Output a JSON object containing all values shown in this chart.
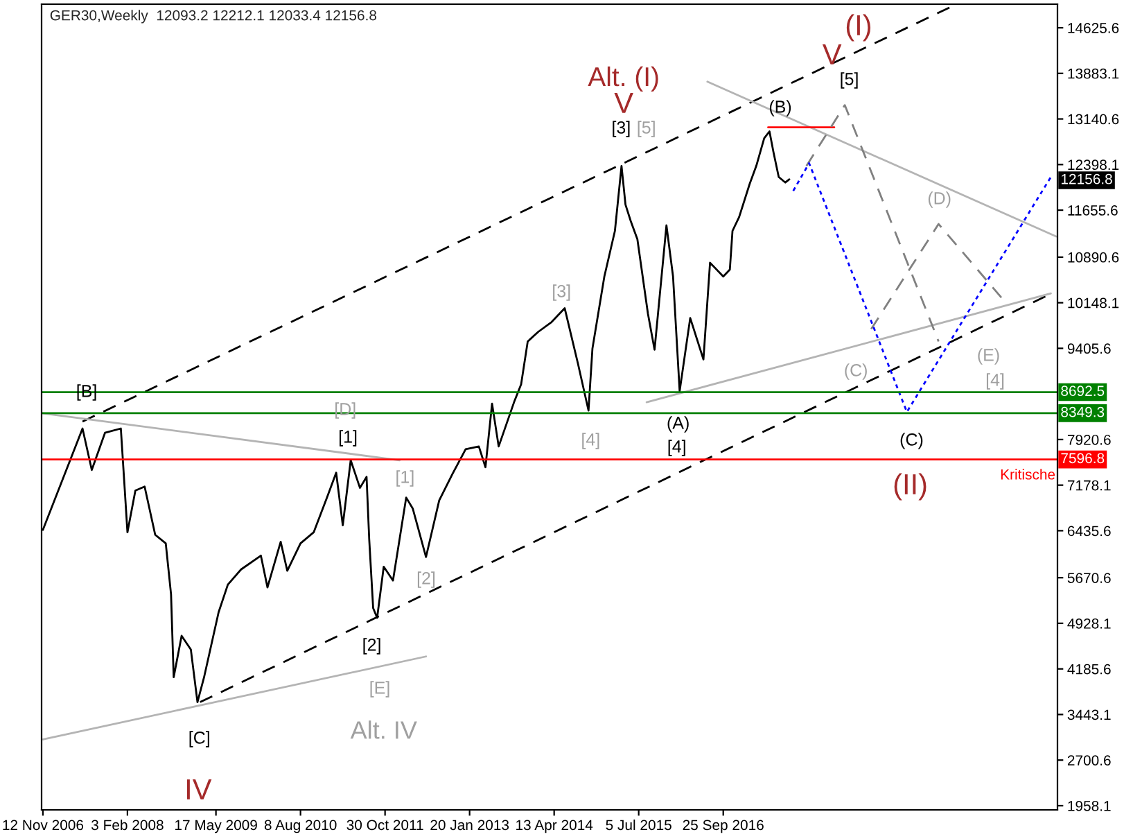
{
  "chart_data": {
    "type": "line",
    "title": "GER30,Weekly  12093.2 12212.1 12033.4 12156.8",
    "xlim": [
      "2006-11-05",
      "2021-08-01"
    ],
    "ylim": [
      1890,
      15010
    ],
    "xticks": [
      {
        "value": "2006-11-12",
        "label": "12 Nov 2006"
      },
      {
        "value": "2008-02-03",
        "label": "3 Feb 2008"
      },
      {
        "value": "2009-05-17",
        "label": "17 May 2009"
      },
      {
        "value": "2010-08-08",
        "label": "8 Aug 2010"
      },
      {
        "value": "2011-10-30",
        "label": "30 Oct 2011"
      },
      {
        "value": "2013-01-20",
        "label": "20 Jan 2013"
      },
      {
        "value": "2014-04-13",
        "label": "13 Apr 2014"
      },
      {
        "value": "2015-07-05",
        "label": "5 Jul 2015"
      },
      {
        "value": "2016-09-25",
        "label": "25 Sep 2016"
      }
    ],
    "yticks": [
      {
        "value": 14625.6,
        "label": "14625.6"
      },
      {
        "value": 13883.1,
        "label": "13883.1"
      },
      {
        "value": 13140.6,
        "label": "13140.6"
      },
      {
        "value": 12398.1,
        "label": "12398.1"
      },
      {
        "value": 11655.6,
        "label": "11655.6"
      },
      {
        "value": 10890.6,
        "label": "10890.6"
      },
      {
        "value": 10148.1,
        "label": "10148.1"
      },
      {
        "value": 9405.6,
        "label": "9405.6"
      },
      {
        "value": 7920.6,
        "label": "7920.6"
      },
      {
        "value": 7178.1,
        "label": "7178.1"
      },
      {
        "value": 6435.6,
        "label": "6435.6"
      },
      {
        "value": 5670.6,
        "label": "5670.6"
      },
      {
        "value": 4928.1,
        "label": "4928.1"
      },
      {
        "value": 4185.6,
        "label": "4185.6"
      },
      {
        "value": 3443.1,
        "label": "3443.1"
      },
      {
        "value": 2700.6,
        "label": "2700.6"
      },
      {
        "value": 1958.1,
        "label": "1958.1"
      }
    ],
    "grid": false,
    "legend": false,
    "series": [
      {
        "color": "#000000",
        "line_style": "solid",
        "x": [
          "2006-11-12",
          "2007-06-10",
          "2007-07-29",
          "2007-10-07",
          "2007-12-30",
          "2008-01-20",
          "2008-02-03",
          "2008-03-16",
          "2008-05-04",
          "2008-06-29",
          "2008-08-24",
          "2008-09-21",
          "2008-10-05",
          "2008-11-16",
          "2009-01-04",
          "2009-02-08",
          "2009-03-15",
          "2009-05-31",
          "2009-07-19",
          "2009-09-27",
          "2010-01-10",
          "2010-02-14",
          "2010-04-25",
          "2010-05-30",
          "2010-08-08",
          "2010-10-17",
          "2010-12-26",
          "2011-02-13",
          "2011-03-20",
          "2011-05-01",
          "2011-06-19",
          "2011-07-24",
          "2011-08-07",
          "2011-08-28",
          "2011-09-18",
          "2011-10-23",
          "2011-12-11",
          "2012-02-19",
          "2012-03-25",
          "2012-06-03",
          "2012-08-12",
          "2012-10-21",
          "2012-12-30",
          "2013-03-10",
          "2013-04-14",
          "2013-05-19",
          "2013-06-23",
          "2013-09-15",
          "2013-10-20",
          "2013-11-24",
          "2014-01-19",
          "2014-03-30",
          "2014-06-08",
          "2014-08-17",
          "2014-10-12",
          "2014-11-02",
          "2015-01-04",
          "2015-03-01",
          "2015-04-05",
          "2015-04-26",
          "2015-05-24",
          "2015-06-28",
          "2015-08-23",
          "2015-09-27",
          "2015-11-29",
          "2016-01-03",
          "2016-02-07",
          "2016-04-03",
          "2016-06-12",
          "2016-07-17",
          "2016-09-25",
          "2016-10-30",
          "2016-11-13",
          "2016-12-18",
          "2017-02-12",
          "2017-03-19",
          "2017-04-30",
          "2017-05-28",
          "2017-06-18",
          "2017-07-16",
          "2017-08-20",
          "2017-09-10"
        ],
        "values": [
          6450,
          8100,
          7425,
          8030,
          8100,
          7090,
          6410,
          7090,
          7155,
          6370,
          6230,
          5400,
          4050,
          4725,
          4500,
          3645,
          4050,
          5108,
          5558,
          5805,
          6030,
          5513,
          6255,
          5783,
          6230,
          6410,
          6975,
          7380,
          6525,
          7583,
          7133,
          7313,
          6300,
          5175,
          5018,
          5850,
          5625,
          6975,
          6795,
          6008,
          6930,
          7358,
          7763,
          7808,
          7470,
          8505,
          7808,
          8550,
          8820,
          9518,
          9675,
          9833,
          10058,
          9158,
          8393,
          9405,
          10575,
          11318,
          12376,
          11746,
          11476,
          11183,
          9968,
          9383,
          11408,
          10575,
          8708,
          9900,
          9225,
          10800,
          10575,
          10688,
          11318,
          11543,
          12083,
          12376,
          12826,
          12938,
          12601,
          12196,
          12106,
          12156.8
        ]
      },
      {
        "color": "#000000",
        "line_style": "dashed",
        "x": [
          "2007-06-10",
          "2020-01-12"
        ],
        "values": [
          8213,
          14963
        ]
      },
      {
        "color": "#000000",
        "line_style": "dashed",
        "x": [
          "2009-02-22",
          "2021-06-20"
        ],
        "values": [
          3645,
          10283
        ]
      },
      {
        "color": "#b4b4b4",
        "line_style": "solid",
        "x": [
          "2006-11-12",
          "2012-06-03"
        ],
        "values": [
          3038,
          4388
        ]
      },
      {
        "color": "#b4b4b4",
        "line_style": "solid",
        "x": [
          "2006-11-12",
          "2012-01-15"
        ],
        "values": [
          8348,
          7583
        ]
      },
      {
        "color": "#b4b4b4",
        "line_style": "solid",
        "x": [
          "2016-07-03",
          "2021-07-25"
        ],
        "values": [
          13748,
          11228
        ]
      },
      {
        "color": "#b4b4b4",
        "line_style": "solid",
        "x": [
          "2015-08-16",
          "2021-06-27"
        ],
        "values": [
          8528,
          10300
        ]
      },
      {
        "color": "#ff0000",
        "line_style": "solid",
        "x": [
          "2017-05-21",
          "2018-05-06"
        ],
        "values": [
          13005,
          13005
        ]
      },
      {
        "color": "#808080",
        "line_style": "dashed",
        "x": [
          "2017-12-10",
          "2018-07-01",
          "2019-11-10"
        ],
        "values": [
          12376,
          13366,
          9518
        ]
      },
      {
        "color": "#808080",
        "line_style": "dashed",
        "x": [
          "2018-11-18",
          "2019-11-10",
          "2020-10-25"
        ],
        "values": [
          9720,
          11430,
          10170
        ]
      },
      {
        "color": "#0000ff",
        "line_style": "dotted",
        "x": [
          "2017-10-01",
          "2017-12-24",
          "2019-05-26",
          "2021-06-27"
        ],
        "values": [
          11970,
          12420,
          8370,
          12196
        ]
      }
    ],
    "ref_lines": [
      {
        "axis": "y",
        "value": 8692.5,
        "label": "8692.5",
        "color": "#008000",
        "line_style": "solid"
      },
      {
        "axis": "y",
        "value": 8349.3,
        "label": "8349.3",
        "color": "#008000",
        "line_style": "solid"
      },
      {
        "axis": "y",
        "value": 7596.8,
        "label": "7596.8",
        "color": "#ff0000",
        "line_style": "solid"
      }
    ],
    "annotations": [
      "[B]",
      "[D]",
      "[1]",
      "[1]",
      "[2]",
      "[2]",
      "[E]",
      "Alt. IV",
      "[C]",
      "IV",
      "[3]",
      "[4]",
      "[3]",
      "[5]",
      "V",
      "Alt. (I)",
      "(B)",
      "[5]",
      "V",
      "(I)",
      "(D)",
      "(C)",
      "(E)",
      "[4]",
      "(A)",
      "[4]",
      "(C)",
      "(II)",
      "Kritische",
      "12156.8"
    ]
  }
}
